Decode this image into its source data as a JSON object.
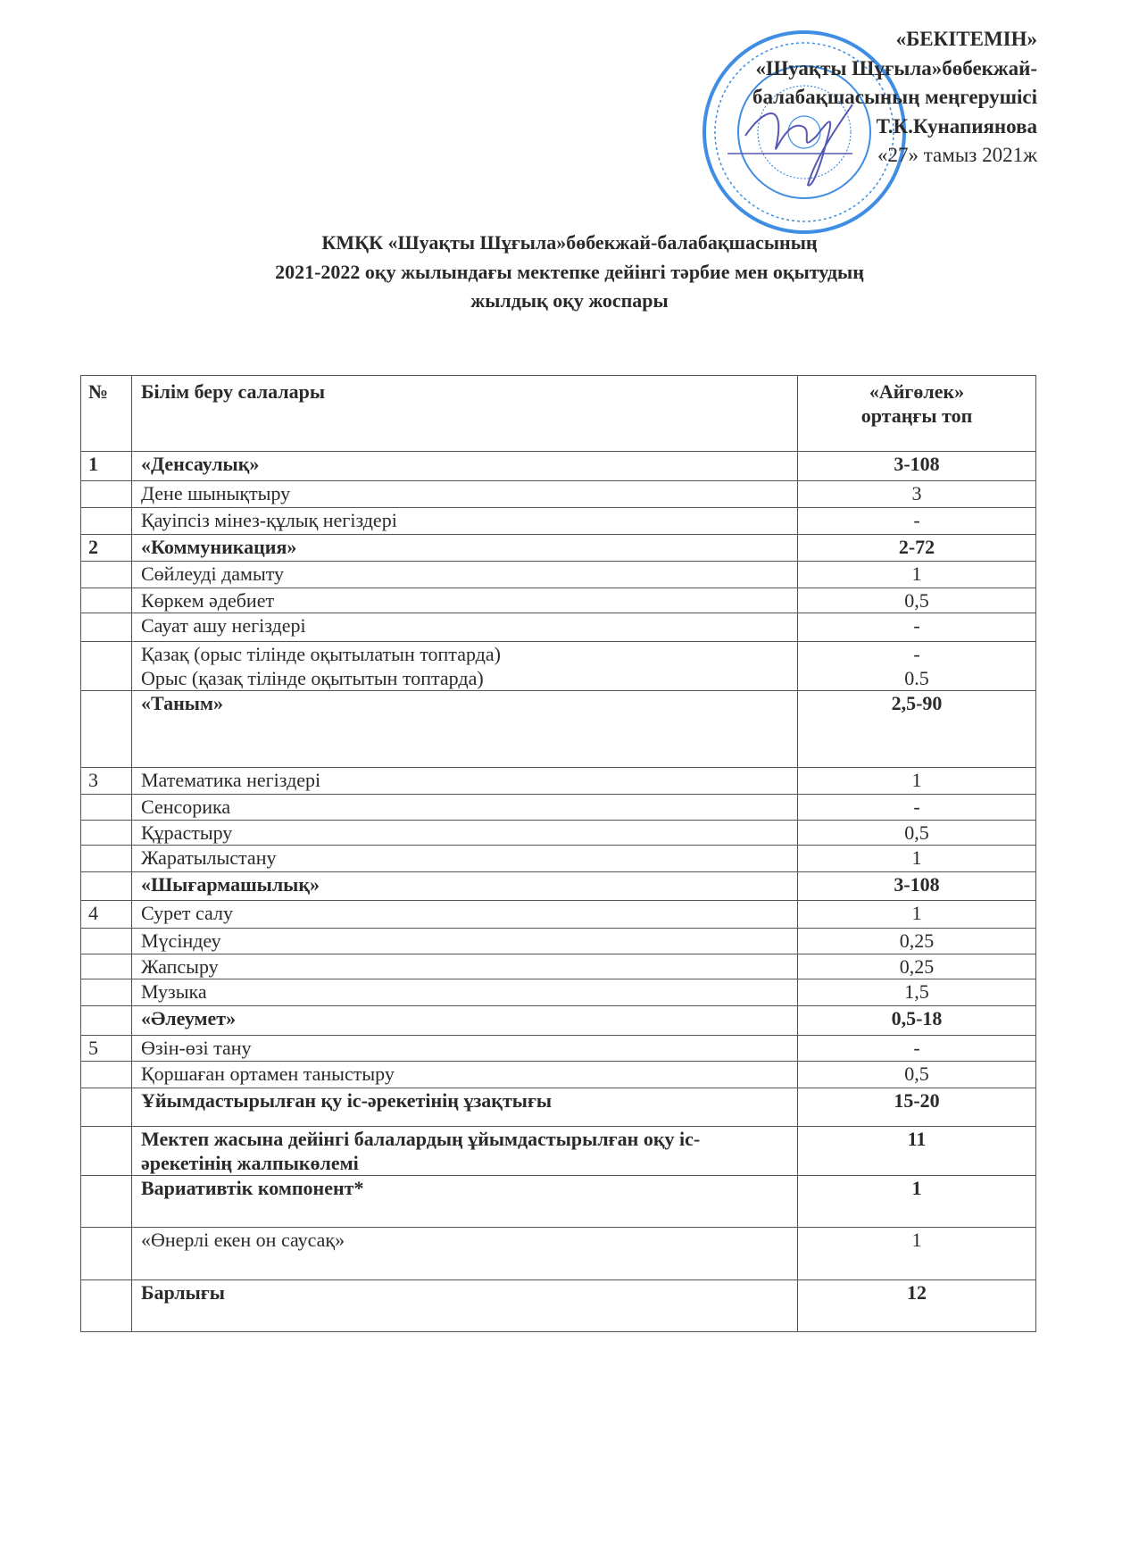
{
  "approval": {
    "lines": [
      "«БЕКІТЕМІН»",
      "«Шуақты Шұғыла»бөбекжай-",
      "балабақшасының  меңгерушісі",
      "Т.К.Кунапиянова",
      "«27»  тамыз  2021ж"
    ]
  },
  "stamp": {
    "color": "#1e7be0",
    "signature_color": "#3a3aa8"
  },
  "title": {
    "line1": "КМҚК «Шуақты Шұғыла»бөбекжай-балабақшасының",
    "line2": "2021-2022 оқу жылындағы  мектепке дейінгі тәрбие мен оқытудың",
    "line3": "жылдық оқу жоспары"
  },
  "table": {
    "headers": {
      "num": "№",
      "area": "Білім беру салалары",
      "group_line1": "«Айгөлек»",
      "group_line2": "ортаңғы топ"
    },
    "rows": [
      {
        "num": "1",
        "label": "«Денсаулық»",
        "value": "3-108",
        "bold": true
      },
      {
        "num": "",
        "label": "Дене шынықтыру",
        "value": "3"
      },
      {
        "num": "",
        "label": "Қауіпсіз мінез-құлық негіздері",
        "value": "-"
      },
      {
        "num": "2",
        "label": "«Коммуникация»",
        "value": "2-72",
        "bold": true
      },
      {
        "num": "",
        "label": "Сөйлеуді дамыту",
        "value": "1"
      },
      {
        "num": "",
        "label": "Көркем әдебиет",
        "value": "0,5"
      },
      {
        "num": "",
        "label": "Сауат ашу негіздері",
        "value": "-"
      },
      {
        "num": "",
        "label": "Қазақ (орыс тілінде оқытылатын топтарда)",
        "label2": "Орыс (қазақ тілінде оқытытын топтарда)",
        "value": "-",
        "value2": "0.5"
      },
      {
        "num": "",
        "label": "«Таным»",
        "value": "2,5-90",
        "bold": true
      },
      {
        "num": "3",
        "label": "Математика негіздері",
        "value": "1"
      },
      {
        "num": "",
        "label": "Сенсорика",
        "value": "-"
      },
      {
        "num": "",
        "label": "Құрастыру",
        "value": "0,5"
      },
      {
        "num": "",
        "label": "Жаратылыстану",
        "value": "1"
      },
      {
        "num": "",
        "label": "«Шығармашылық»",
        "value": "3-108",
        "bold": true
      },
      {
        "num": "4",
        "label": "Сурет салу",
        "value": "1"
      },
      {
        "num": "",
        "label": "Мүсіндеу",
        "value": "0,25"
      },
      {
        "num": "",
        "label": "Жапсыру",
        "value": "0,25"
      },
      {
        "num": "",
        "label": "Музыка",
        "value": "1,5"
      },
      {
        "num": "",
        "label": "«Әлеумет»",
        "value": "0,5-18",
        "bold": true
      },
      {
        "num": "5",
        "label": "Өзін-өзі тану",
        "value": "-"
      },
      {
        "num": "",
        "label": "Қоршаған ортамен таныстыру",
        "value": "0,5"
      },
      {
        "num": "",
        "label": "Ұйымдастырылған қу іс-әрекетінің ұзақтығы",
        "value": "15-20",
        "bold": true
      },
      {
        "num": "",
        "label": "Мектеп жасына дейінгі балалардың ұйымдастырылған оқу іс-әрекетінің жалпыкөлемі",
        "value": "11",
        "bold": true
      },
      {
        "num": "",
        "label": "Вариативтік компонент*",
        "value": "1",
        "bold": true
      },
      {
        "num": "",
        "label": "«Өнерлі екен он саусақ»",
        "value": "1"
      },
      {
        "num": "",
        "label": "Барлығы",
        "value": "12",
        "bold": true
      }
    ]
  }
}
